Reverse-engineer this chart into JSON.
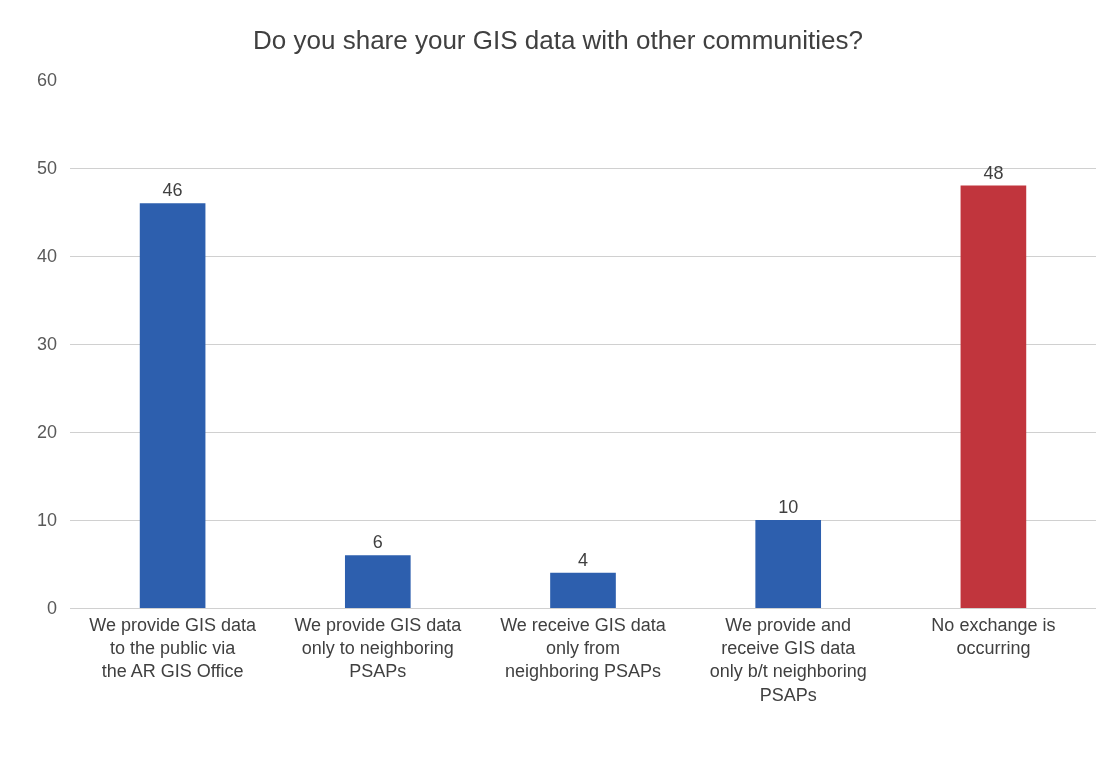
{
  "chart_data": {
    "type": "bar",
    "title": "Do you share your GIS data with other communities?",
    "categories": [
      "We provide GIS data to the public via the AR GIS Office",
      "We provide GIS data only to neighboring PSAPs",
      "We receive GIS data only from neighboring PSAPs",
      "We provide and receive GIS data only b/t neighboring PSAPs",
      "No exchange is occurring"
    ],
    "values": [
      46,
      6,
      4,
      10,
      48
    ],
    "colors": [
      "#2d5fae",
      "#2d5fae",
      "#2d5fae",
      "#2d5fae",
      "#c1353d"
    ],
    "ylim": [
      0,
      60
    ],
    "yticks": [
      0,
      10,
      20,
      30,
      40,
      50,
      60
    ],
    "grid": "y",
    "data_labels": true
  }
}
